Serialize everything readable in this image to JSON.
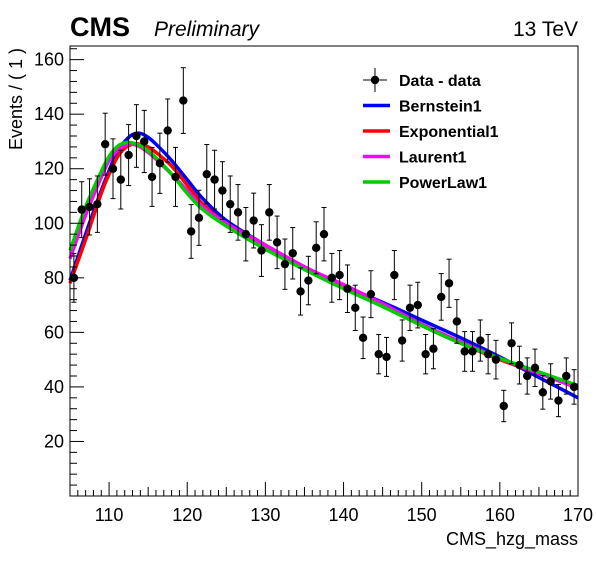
{
  "header": {
    "experiment": "CMS",
    "status": "Preliminary",
    "energy": "13 TeV"
  },
  "chart_data": {
    "type": "scatter",
    "xlabel": "CMS_hzg_mass",
    "ylabel": "Events / ( 1 )",
    "xlim": [
      105,
      170
    ],
    "ylim": [
      0,
      165
    ],
    "x_ticks": [
      110,
      120,
      130,
      140,
      150,
      160,
      170
    ],
    "y_ticks": [
      20,
      40,
      60,
      80,
      100,
      120,
      140,
      160
    ],
    "legend": {
      "placement": "top-right",
      "entries": [
        "Data - data",
        "Bernstein1",
        "Exponential1",
        "Laurent1",
        "PowerLaw1"
      ]
    },
    "data": {
      "name": "Data - data",
      "color": "#000000",
      "x": [
        105.5,
        106.5,
        107.5,
        108.5,
        109.5,
        110.5,
        111.5,
        112.5,
        113.5,
        114.5,
        115.5,
        116.5,
        117.5,
        118.5,
        119.5,
        120.5,
        121.5,
        122.5,
        123.5,
        124.5,
        125.5,
        126.5,
        127.5,
        128.5,
        129.5,
        130.5,
        131.5,
        132.5,
        133.5,
        134.5,
        135.5,
        136.5,
        137.5,
        138.5,
        139.5,
        140.5,
        141.5,
        142.5,
        143.5,
        144.5,
        145.5,
        146.5,
        147.5,
        148.5,
        149.5,
        150.5,
        151.5,
        152.5,
        153.5,
        154.5,
        155.5,
        156.5,
        157.5,
        158.5,
        159.5,
        160.5,
        161.5,
        162.5,
        163.5,
        164.5,
        165.5,
        166.5,
        167.5,
        168.5,
        169.5
      ],
      "y": [
        80,
        105,
        106,
        107,
        129,
        120,
        116,
        125,
        132,
        130,
        117,
        122,
        134,
        117,
        145,
        97,
        102,
        118,
        116,
        112,
        107,
        104,
        96,
        101,
        90,
        104,
        93,
        85,
        89,
        75,
        79,
        91,
        96,
        80,
        81,
        76,
        69,
        58,
        74,
        52,
        51,
        81,
        57,
        69,
        70,
        52,
        54,
        73,
        78,
        64,
        53,
        53,
        57,
        52,
        50,
        33,
        56,
        48,
        44,
        47,
        38,
        42,
        35,
        44,
        40
      ]
    },
    "series": [
      {
        "name": "Bernstein1",
        "color": "#0000ff",
        "x": [
          105,
          107,
          109,
          111,
          112,
          113,
          114,
          115,
          116,
          118,
          120,
          122,
          125,
          130,
          135,
          140,
          145,
          150,
          155,
          160,
          165,
          170
        ],
        "y": [
          79,
          96,
          112,
          126,
          130,
          132.5,
          133,
          131.5,
          129,
          123,
          116,
          109,
          101,
          92,
          84,
          77,
          71,
          64.5,
          58,
          51,
          43.5,
          36
        ]
      },
      {
        "name": "Exponential1",
        "color": "#ff0000",
        "x": [
          105,
          107,
          109,
          110,
          111,
          112,
          113,
          114,
          115,
          116,
          118,
          120,
          122,
          125,
          130,
          135,
          140,
          145,
          150,
          155,
          160,
          165,
          170
        ],
        "y": [
          78,
          94,
          111,
          118,
          124,
          127.5,
          129,
          129,
          128,
          126,
          121,
          114,
          107,
          100,
          92,
          84,
          77,
          70,
          62.5,
          56,
          50,
          45,
          40
        ]
      },
      {
        "name": "Laurent1",
        "color": "#ff00ff",
        "x": [
          105,
          107,
          109,
          110,
          111,
          112,
          113,
          114,
          115,
          116,
          118,
          120,
          122,
          125,
          130,
          135,
          140,
          145,
          150,
          155,
          160,
          165,
          170
        ],
        "y": [
          87,
          103,
          117,
          123,
          126.5,
          128.5,
          129,
          128,
          126,
          123.5,
          118,
          112,
          106,
          100,
          92,
          84,
          77.5,
          70.5,
          63,
          56.5,
          50.5,
          45,
          39.5
        ]
      },
      {
        "name": "PowerLaw1",
        "color": "#00cc00",
        "x": [
          105,
          107,
          109,
          110,
          111,
          112,
          113,
          114,
          115,
          116,
          118,
          120,
          122,
          125,
          130,
          135,
          140,
          145,
          150,
          155,
          160,
          165,
          170
        ],
        "y": [
          90,
          106,
          119,
          124.5,
          128,
          129.5,
          129.5,
          128.5,
          126.5,
          124,
          118,
          111,
          105,
          99,
          90.5,
          83,
          76,
          69.5,
          62.5,
          56,
          50.5,
          45.5,
          40.5
        ]
      }
    ]
  }
}
